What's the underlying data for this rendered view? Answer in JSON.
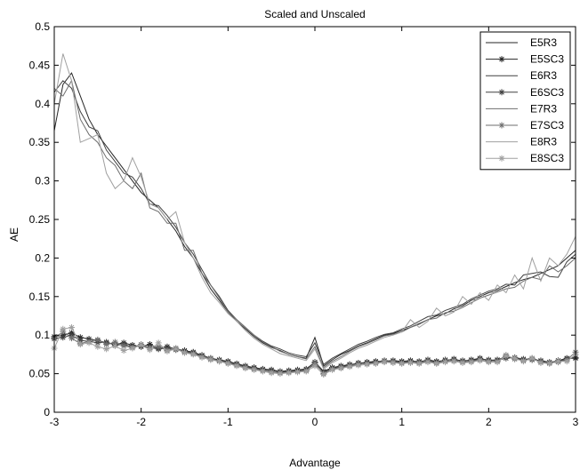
{
  "chart_data": {
    "type": "line",
    "title": "Scaled and Unscaled",
    "xlabel": "Advantage",
    "ylabel": "AE",
    "xlim": [
      -3,
      3
    ],
    "ylim": [
      0,
      0.5
    ],
    "xticks": [
      -3,
      -2,
      -1,
      0,
      1,
      2,
      3
    ],
    "xtick_labels": [
      "-3",
      "-2",
      "-1",
      "0",
      "1",
      "2",
      "3"
    ],
    "yticks": [
      0,
      0.05,
      0.1,
      0.15,
      0.2,
      0.25,
      0.3,
      0.35,
      0.4,
      0.45,
      0.5
    ],
    "ytick_labels": [
      "0",
      "0.05",
      "0.1",
      "0.15",
      "0.2",
      "0.25",
      "0.3",
      "0.35",
      "0.4",
      "0.45",
      "0.5"
    ],
    "grid": false,
    "legend_position": "top-right",
    "series": [
      {
        "name": "E5R3",
        "color": "#262626",
        "marker": "none",
        "x": [
          -3.0,
          -2.9,
          -2.8,
          -2.7,
          -2.6,
          -2.5,
          -2.4,
          -2.3,
          -2.2,
          -2.1,
          -2.0,
          -1.9,
          -1.8,
          -1.7,
          -1.6,
          -1.5,
          -1.4,
          -1.3,
          -1.2,
          -1.1,
          -1.0,
          -0.9,
          -0.8,
          -0.7,
          -0.6,
          -0.5,
          -0.4,
          -0.3,
          -0.2,
          -0.1,
          0.0,
          0.1,
          0.2,
          0.3,
          0.4,
          0.5,
          0.6,
          0.7,
          0.8,
          0.9,
          1.0,
          1.1,
          1.2,
          1.3,
          1.4,
          1.5,
          1.6,
          1.7,
          1.8,
          1.9,
          2.0,
          2.1,
          2.2,
          2.3,
          2.4,
          2.5,
          2.6,
          2.7,
          2.8,
          2.9,
          3.0
        ],
        "y": [
          0.365,
          0.425,
          0.44,
          0.41,
          0.38,
          0.36,
          0.345,
          0.33,
          0.315,
          0.3,
          0.285,
          0.275,
          0.265,
          0.25,
          0.235,
          0.215,
          0.2,
          0.18,
          0.16,
          0.145,
          0.13,
          0.118,
          0.108,
          0.098,
          0.09,
          0.084,
          0.08,
          0.075,
          0.072,
          0.07,
          0.097,
          0.06,
          0.068,
          0.075,
          0.08,
          0.086,
          0.09,
          0.095,
          0.1,
          0.102,
          0.106,
          0.11,
          0.115,
          0.12,
          0.125,
          0.128,
          0.134,
          0.138,
          0.145,
          0.15,
          0.155,
          0.158,
          0.163,
          0.168,
          0.172,
          0.175,
          0.18,
          0.185,
          0.19,
          0.2,
          0.21
        ]
      },
      {
        "name": "E5SC3",
        "color": "#262626",
        "marker": "*",
        "x": [
          -3.0,
          -2.9,
          -2.8,
          -2.7,
          -2.6,
          -2.5,
          -2.4,
          -2.3,
          -2.2,
          -2.1,
          -2.0,
          -1.9,
          -1.8,
          -1.7,
          -1.6,
          -1.5,
          -1.4,
          -1.3,
          -1.2,
          -1.1,
          -1.0,
          -0.9,
          -0.8,
          -0.7,
          -0.6,
          -0.5,
          -0.4,
          -0.3,
          -0.2,
          -0.1,
          0.0,
          0.1,
          0.2,
          0.3,
          0.4,
          0.5,
          0.6,
          0.7,
          0.8,
          0.9,
          1.0,
          1.1,
          1.2,
          1.3,
          1.4,
          1.5,
          1.6,
          1.7,
          1.8,
          1.9,
          2.0,
          2.1,
          2.2,
          2.3,
          2.4,
          2.5,
          2.6,
          2.7,
          2.8,
          2.9,
          3.0
        ],
        "y": [
          0.098,
          0.1,
          0.103,
          0.097,
          0.095,
          0.093,
          0.09,
          0.088,
          0.09,
          0.087,
          0.085,
          0.088,
          0.083,
          0.085,
          0.082,
          0.08,
          0.078,
          0.074,
          0.07,
          0.068,
          0.066,
          0.063,
          0.06,
          0.058,
          0.056,
          0.055,
          0.053,
          0.054,
          0.055,
          0.056,
          0.065,
          0.053,
          0.058,
          0.06,
          0.062,
          0.063,
          0.065,
          0.066,
          0.066,
          0.067,
          0.066,
          0.067,
          0.065,
          0.068,
          0.066,
          0.067,
          0.069,
          0.066,
          0.068,
          0.07,
          0.067,
          0.068,
          0.072,
          0.07,
          0.068,
          0.07,
          0.066,
          0.064,
          0.067,
          0.07,
          0.07
        ]
      },
      {
        "name": "E6R3",
        "color": "#404040",
        "marker": "none",
        "x": [
          -3.0,
          -2.9,
          -2.8,
          -2.7,
          -2.6,
          -2.5,
          -2.4,
          -2.3,
          -2.2,
          -2.1,
          -2.0,
          -1.9,
          -1.8,
          -1.7,
          -1.6,
          -1.5,
          -1.4,
          -1.3,
          -1.2,
          -1.1,
          -1.0,
          -0.9,
          -0.8,
          -0.7,
          -0.6,
          -0.5,
          -0.4,
          -0.3,
          -0.2,
          -0.1,
          0.0,
          0.1,
          0.2,
          0.3,
          0.4,
          0.5,
          0.6,
          0.7,
          0.8,
          0.9,
          1.0,
          1.1,
          1.2,
          1.3,
          1.4,
          1.5,
          1.6,
          1.7,
          1.8,
          1.9,
          2.0,
          2.1,
          2.2,
          2.3,
          2.4,
          2.5,
          2.6,
          2.7,
          2.8,
          2.9,
          3.0
        ],
        "y": [
          0.415,
          0.43,
          0.42,
          0.39,
          0.37,
          0.365,
          0.34,
          0.325,
          0.31,
          0.305,
          0.29,
          0.27,
          0.268,
          0.255,
          0.24,
          0.22,
          0.205,
          0.185,
          0.165,
          0.15,
          0.132,
          0.12,
          0.11,
          0.1,
          0.092,
          0.086,
          0.082,
          0.077,
          0.074,
          0.072,
          0.09,
          0.062,
          0.07,
          0.076,
          0.082,
          0.088,
          0.092,
          0.097,
          0.101,
          0.103,
          0.108,
          0.112,
          0.118,
          0.124,
          0.126,
          0.132,
          0.136,
          0.14,
          0.147,
          0.152,
          0.157,
          0.16,
          0.166,
          0.165,
          0.178,
          0.18,
          0.182,
          0.176,
          0.175,
          0.195,
          0.205
        ]
      },
      {
        "name": "E6SC3",
        "color": "#404040",
        "marker": "*",
        "x": [
          -3.0,
          -2.9,
          -2.8,
          -2.7,
          -2.6,
          -2.5,
          -2.4,
          -2.3,
          -2.2,
          -2.1,
          -2.0,
          -1.9,
          -1.8,
          -1.7,
          -1.6,
          -1.5,
          -1.4,
          -1.3,
          -1.2,
          -1.1,
          -1.0,
          -0.9,
          -0.8,
          -0.7,
          -0.6,
          -0.5,
          -0.4,
          -0.3,
          -0.2,
          -0.1,
          0.0,
          0.1,
          0.2,
          0.3,
          0.4,
          0.5,
          0.6,
          0.7,
          0.8,
          0.9,
          1.0,
          1.1,
          1.2,
          1.3,
          1.4,
          1.5,
          1.6,
          1.7,
          1.8,
          1.9,
          2.0,
          2.1,
          2.2,
          2.3,
          2.4,
          2.5,
          2.6,
          2.7,
          2.8,
          2.9,
          3.0
        ],
        "y": [
          0.096,
          0.097,
          0.1,
          0.093,
          0.092,
          0.09,
          0.091,
          0.087,
          0.088,
          0.085,
          0.086,
          0.084,
          0.082,
          0.083,
          0.081,
          0.079,
          0.077,
          0.073,
          0.069,
          0.067,
          0.065,
          0.062,
          0.059,
          0.057,
          0.055,
          0.054,
          0.052,
          0.053,
          0.054,
          0.055,
          0.062,
          0.052,
          0.057,
          0.059,
          0.061,
          0.064,
          0.064,
          0.065,
          0.067,
          0.066,
          0.065,
          0.066,
          0.066,
          0.067,
          0.065,
          0.068,
          0.068,
          0.067,
          0.067,
          0.069,
          0.068,
          0.067,
          0.07,
          0.071,
          0.069,
          0.068,
          0.067,
          0.065,
          0.066,
          0.069,
          0.071
        ]
      },
      {
        "name": "E7R3",
        "color": "#6e6e6e",
        "marker": "none",
        "x": [
          -3.0,
          -2.9,
          -2.8,
          -2.7,
          -2.6,
          -2.5,
          -2.4,
          -2.3,
          -2.2,
          -2.1,
          -2.0,
          -1.9,
          -1.8,
          -1.7,
          -1.6,
          -1.5,
          -1.4,
          -1.3,
          -1.2,
          -1.1,
          -1.0,
          -0.9,
          -0.8,
          -0.7,
          -0.6,
          -0.5,
          -0.4,
          -0.3,
          -0.2,
          -0.1,
          0.0,
          0.1,
          0.2,
          0.3,
          0.4,
          0.5,
          0.6,
          0.7,
          0.8,
          0.9,
          1.0,
          1.1,
          1.2,
          1.3,
          1.4,
          1.5,
          1.6,
          1.7,
          1.8,
          1.9,
          2.0,
          2.1,
          2.2,
          2.3,
          2.4,
          2.5,
          2.6,
          2.7,
          2.8,
          2.9,
          3.0
        ],
        "y": [
          0.42,
          0.41,
          0.43,
          0.38,
          0.36,
          0.35,
          0.33,
          0.32,
          0.3,
          0.29,
          0.31,
          0.265,
          0.26,
          0.245,
          0.245,
          0.21,
          0.21,
          0.18,
          0.165,
          0.148,
          0.13,
          0.12,
          0.11,
          0.1,
          0.091,
          0.085,
          0.079,
          0.075,
          0.072,
          0.069,
          0.085,
          0.058,
          0.066,
          0.072,
          0.079,
          0.085,
          0.089,
          0.094,
          0.099,
          0.101,
          0.104,
          0.11,
          0.114,
          0.12,
          0.122,
          0.129,
          0.131,
          0.136,
          0.142,
          0.148,
          0.152,
          0.156,
          0.16,
          0.162,
          0.17,
          0.175,
          0.172,
          0.19,
          0.182,
          0.19,
          0.2
        ]
      },
      {
        "name": "E7SC3",
        "color": "#6e6e6e",
        "marker": "*",
        "x": [
          -3.0,
          -2.9,
          -2.8,
          -2.7,
          -2.6,
          -2.5,
          -2.4,
          -2.3,
          -2.2,
          -2.1,
          -2.0,
          -1.9,
          -1.8,
          -1.7,
          -1.6,
          -1.5,
          -1.4,
          -1.3,
          -1.2,
          -1.1,
          -1.0,
          -0.9,
          -0.8,
          -0.7,
          -0.6,
          -0.5,
          -0.4,
          -0.3,
          -0.2,
          -0.1,
          0.0,
          0.1,
          0.2,
          0.3,
          0.4,
          0.5,
          0.6,
          0.7,
          0.8,
          0.9,
          1.0,
          1.1,
          1.2,
          1.3,
          1.4,
          1.5,
          1.6,
          1.7,
          1.8,
          1.9,
          2.0,
          2.1,
          2.2,
          2.3,
          2.4,
          2.5,
          2.6,
          2.7,
          2.8,
          2.9,
          3.0
        ],
        "y": [
          0.095,
          0.105,
          0.096,
          0.089,
          0.092,
          0.094,
          0.088,
          0.091,
          0.086,
          0.084,
          0.088,
          0.083,
          0.085,
          0.08,
          0.083,
          0.078,
          0.076,
          0.072,
          0.07,
          0.066,
          0.064,
          0.061,
          0.058,
          0.056,
          0.054,
          0.052,
          0.051,
          0.052,
          0.053,
          0.054,
          0.064,
          0.05,
          0.056,
          0.058,
          0.06,
          0.062,
          0.063,
          0.064,
          0.066,
          0.065,
          0.064,
          0.065,
          0.064,
          0.066,
          0.064,
          0.066,
          0.067,
          0.065,
          0.066,
          0.068,
          0.066,
          0.066,
          0.074,
          0.069,
          0.067,
          0.069,
          0.065,
          0.064,
          0.065,
          0.068,
          0.078
        ]
      },
      {
        "name": "E8R3",
        "color": "#a0a0a0",
        "marker": "none",
        "x": [
          -3.0,
          -2.9,
          -2.8,
          -2.7,
          -2.6,
          -2.5,
          -2.4,
          -2.3,
          -2.2,
          -2.1,
          -2.0,
          -1.9,
          -1.8,
          -1.7,
          -1.6,
          -1.5,
          -1.4,
          -1.3,
          -1.2,
          -1.1,
          -1.0,
          -0.9,
          -0.8,
          -0.7,
          -0.6,
          -0.5,
          -0.4,
          -0.3,
          -0.2,
          -0.1,
          0.0,
          0.1,
          0.2,
          0.3,
          0.4,
          0.5,
          0.6,
          0.7,
          0.8,
          0.9,
          1.0,
          1.1,
          1.2,
          1.3,
          1.4,
          1.5,
          1.6,
          1.7,
          1.8,
          1.9,
          2.0,
          2.1,
          2.2,
          2.3,
          2.4,
          2.5,
          2.6,
          2.7,
          2.8,
          2.9,
          3.0
        ],
        "y": [
          0.4,
          0.465,
          0.43,
          0.35,
          0.355,
          0.36,
          0.31,
          0.29,
          0.3,
          0.33,
          0.305,
          0.27,
          0.265,
          0.25,
          0.26,
          0.22,
          0.2,
          0.175,
          0.155,
          0.142,
          0.128,
          0.118,
          0.106,
          0.096,
          0.088,
          0.082,
          0.076,
          0.073,
          0.07,
          0.067,
          0.082,
          0.056,
          0.064,
          0.07,
          0.077,
          0.083,
          0.087,
          0.092,
          0.097,
          0.1,
          0.104,
          0.12,
          0.11,
          0.118,
          0.135,
          0.125,
          0.13,
          0.15,
          0.14,
          0.155,
          0.145,
          0.165,
          0.155,
          0.178,
          0.16,
          0.2,
          0.17,
          0.2,
          0.19,
          0.205,
          0.228
        ]
      },
      {
        "name": "E8SC3",
        "color": "#a0a0a0",
        "marker": "*",
        "x": [
          -3.0,
          -2.9,
          -2.8,
          -2.7,
          -2.6,
          -2.5,
          -2.4,
          -2.3,
          -2.2,
          -2.1,
          -2.0,
          -1.9,
          -1.8,
          -1.7,
          -1.6,
          -1.5,
          -1.4,
          -1.3,
          -1.2,
          -1.1,
          -1.0,
          -0.9,
          -0.8,
          -0.7,
          -0.6,
          -0.5,
          -0.4,
          -0.3,
          -0.2,
          -0.1,
          0.0,
          0.1,
          0.2,
          0.3,
          0.4,
          0.5,
          0.6,
          0.7,
          0.8,
          0.9,
          1.0,
          1.1,
          1.2,
          1.3,
          1.4,
          1.5,
          1.6,
          1.7,
          1.8,
          1.9,
          2.0,
          2.1,
          2.2,
          2.3,
          2.4,
          2.5,
          2.6,
          2.7,
          2.8,
          2.9,
          3.0
        ],
        "y": [
          0.083,
          0.108,
          0.11,
          0.088,
          0.09,
          0.085,
          0.082,
          0.086,
          0.08,
          0.083,
          0.087,
          0.081,
          0.09,
          0.079,
          0.082,
          0.077,
          0.075,
          0.071,
          0.068,
          0.066,
          0.063,
          0.06,
          0.057,
          0.055,
          0.053,
          0.051,
          0.05,
          0.051,
          0.052,
          0.053,
          0.06,
          0.049,
          0.055,
          0.057,
          0.059,
          0.061,
          0.062,
          0.063,
          0.065,
          0.064,
          0.063,
          0.064,
          0.063,
          0.065,
          0.063,
          0.065,
          0.066,
          0.064,
          0.065,
          0.067,
          0.065,
          0.065,
          0.073,
          0.07,
          0.066,
          0.07,
          0.064,
          0.063,
          0.066,
          0.066,
          0.075
        ]
      }
    ]
  }
}
